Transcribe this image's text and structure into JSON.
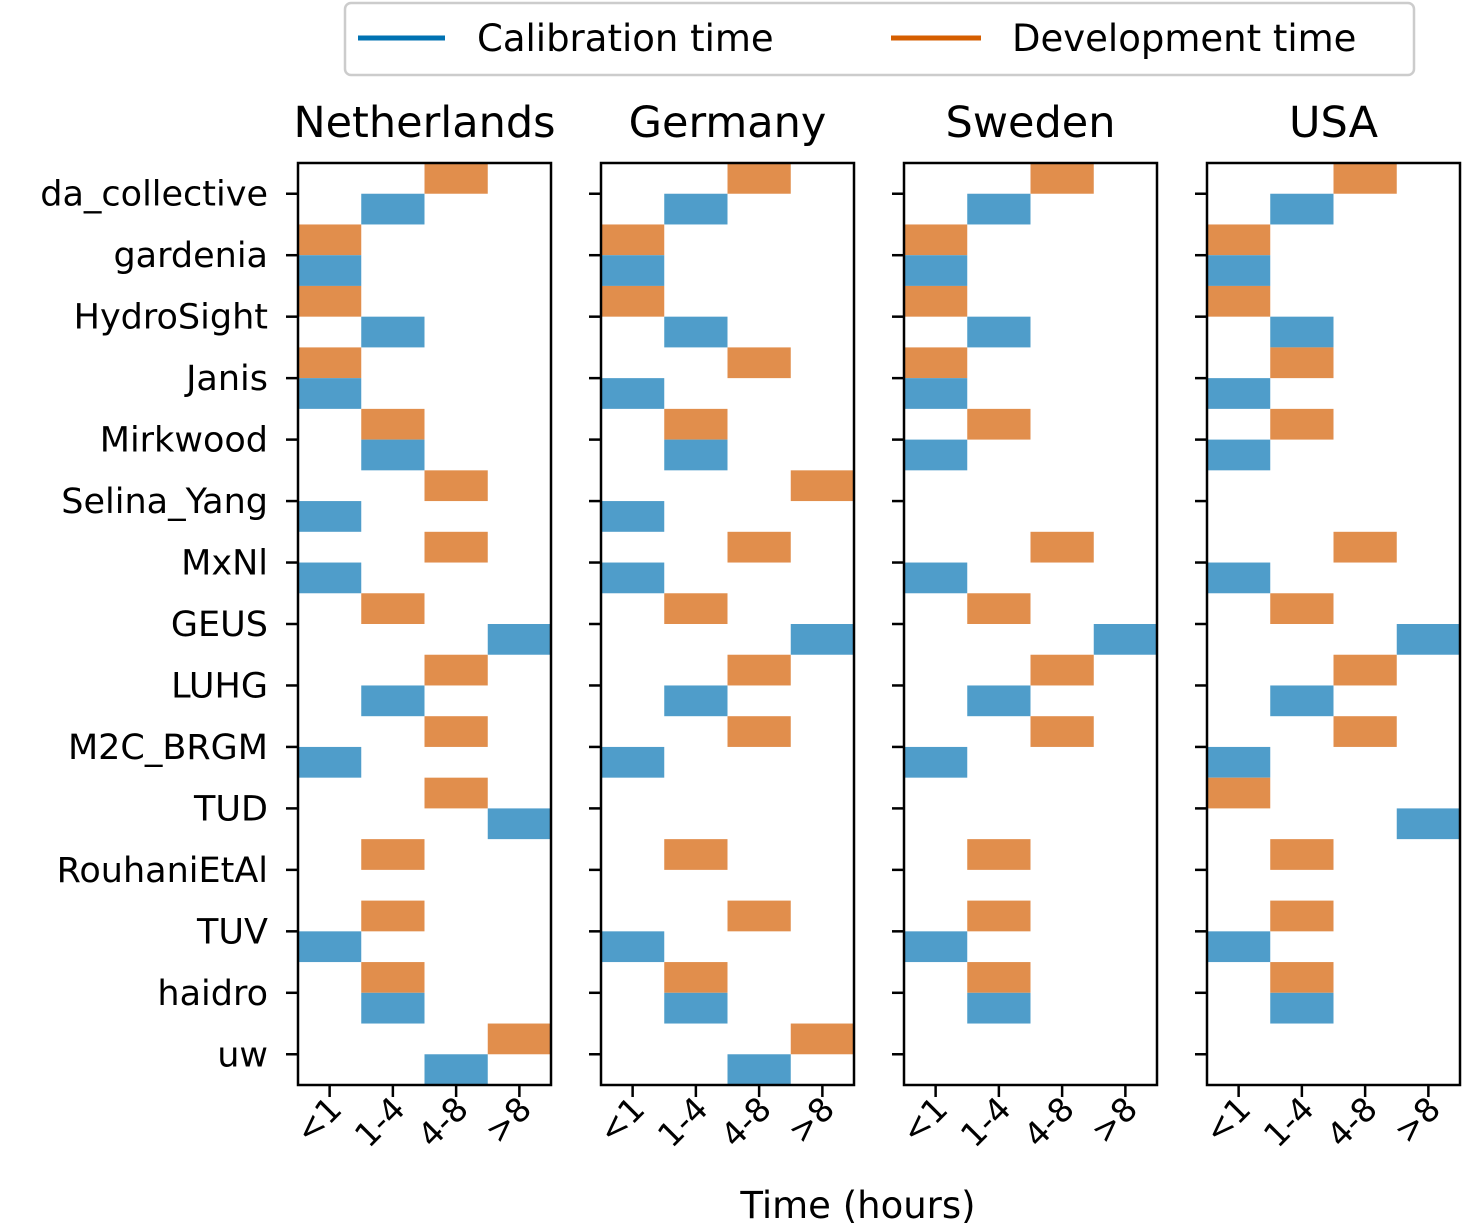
{
  "chart_data": {
    "type": "heatmap",
    "title": "",
    "xlabel": "Time (hours)",
    "ylabel": "",
    "x_categories": [
      "<1",
      "1-4",
      "4-8",
      ">8"
    ],
    "y_categories": [
      "da_collective",
      "gardenia",
      "HydroSight",
      "Janis",
      "Mirkwood",
      "Selina_Yang",
      "MxNl",
      "GEUS",
      "LUHG",
      "M2C_BRGM",
      "TUD",
      "RouhaniEtAl",
      "TUV",
      "haidro",
      "uw"
    ],
    "legend": {
      "placement": "top-center",
      "entries": [
        {
          "name": "Calibration time",
          "color": "#0072b2"
        },
        {
          "name": "Development time",
          "color": "#d55e00"
        }
      ]
    },
    "cell_colors": {
      "calibration": "#4f9dca",
      "development": "#e18e4c"
    },
    "value_encoding": "index into x_categories; null = no value",
    "panels": [
      {
        "title": "Netherlands",
        "development": [
          2,
          0,
          0,
          0,
          1,
          2,
          2,
          1,
          2,
          2,
          2,
          1,
          1,
          1,
          3
        ],
        "calibration": [
          1,
          0,
          1,
          0,
          1,
          0,
          0,
          3,
          1,
          0,
          3,
          null,
          0,
          1,
          2
        ]
      },
      {
        "title": "Germany",
        "development": [
          2,
          0,
          0,
          2,
          1,
          3,
          2,
          1,
          2,
          2,
          null,
          1,
          2,
          1,
          3
        ],
        "calibration": [
          1,
          0,
          1,
          0,
          1,
          0,
          0,
          3,
          1,
          0,
          null,
          null,
          0,
          1,
          2
        ]
      },
      {
        "title": "Sweden",
        "development": [
          2,
          0,
          0,
          0,
          1,
          null,
          2,
          1,
          2,
          2,
          null,
          1,
          1,
          1,
          null
        ],
        "calibration": [
          1,
          0,
          1,
          0,
          0,
          null,
          0,
          3,
          1,
          0,
          null,
          null,
          0,
          1,
          null
        ]
      },
      {
        "title": "USA",
        "development": [
          2,
          0,
          0,
          1,
          1,
          null,
          2,
          1,
          2,
          2,
          0,
          1,
          1,
          1,
          null
        ],
        "calibration": [
          1,
          0,
          1,
          0,
          0,
          null,
          0,
          3,
          1,
          0,
          3,
          null,
          0,
          1,
          null
        ]
      }
    ]
  }
}
